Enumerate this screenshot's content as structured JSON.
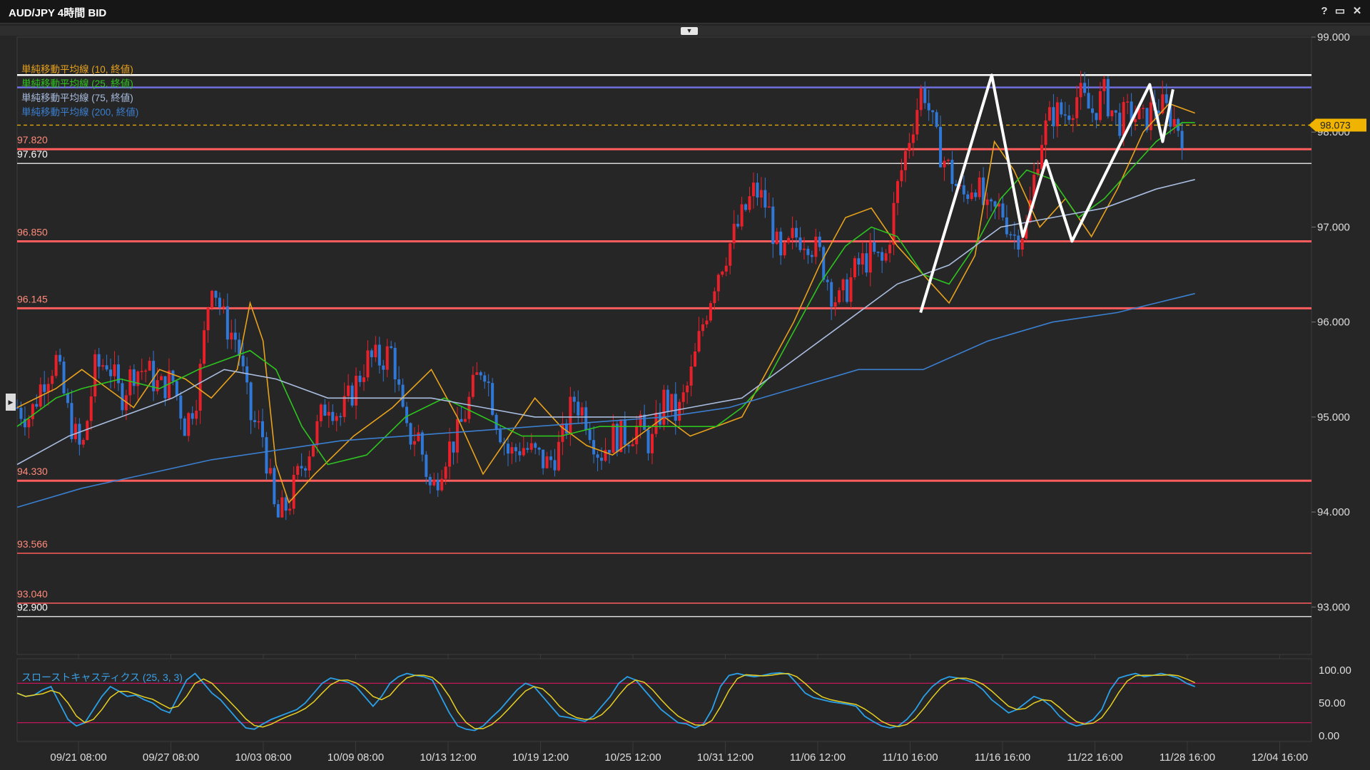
{
  "window": {
    "title": "AUD/JPY 4時間 BID",
    "help_label": "?",
    "maximize_label": "▭",
    "close_label": "✕"
  },
  "indicators": {
    "ma_legend": [
      {
        "label": "単純移動平均線 (10, 終値)",
        "color": "#e8a21c"
      },
      {
        "label": "単純移動平均線 (25, 終値)",
        "color": "#2ec41f"
      },
      {
        "label": "単純移動平均線 (75, 終値)",
        "color": "#a9bde0"
      },
      {
        "label": "単純移動平均線 (200, 終値)",
        "color": "#3a7fd0"
      }
    ],
    "oscillator_label": "スローストキャスティクス (25, 3, 3)"
  },
  "chart_data": {
    "type": "candlestick",
    "symbol": "AUD/JPY",
    "timeframe": "4時間",
    "price_axis": {
      "min": 92.5,
      "max": 99.0,
      "ticks": [
        "99.000",
        "98.000",
        "97.000",
        "96.000",
        "95.000",
        "94.000",
        "93.000"
      ]
    },
    "current_price": "98.073",
    "x_tick_labels": [
      "09/21 08:00",
      "09/27 08:00",
      "10/03 08:00",
      "10/09 08:00",
      "10/13 12:00",
      "10/19 12:00",
      "10/25 12:00",
      "10/31 12:00",
      "11/06 12:00",
      "11/10 16:00",
      "11/16 16:00",
      "11/22 16:00",
      "11/28 16:00",
      "12/04 16:00"
    ],
    "horizontal_levels": [
      {
        "price": 98.6,
        "label": "",
        "color": "#ffffff"
      },
      {
        "price": 98.47,
        "label": "",
        "color": "#6f6fe0"
      },
      {
        "price": 97.82,
        "label": "97.820",
        "color": "#ff5d5d"
      },
      {
        "price": 97.67,
        "label": "97.670",
        "color": "#d8d8d8"
      },
      {
        "price": 96.85,
        "label": "96.850",
        "color": "#ff5d5d"
      },
      {
        "price": 96.145,
        "label": "96.145",
        "color": "#ff5d5d"
      },
      {
        "price": 94.33,
        "label": "94.330",
        "color": "#ff5d5d"
      },
      {
        "price": 93.566,
        "label": "93.566",
        "color": "#ff5d5d"
      },
      {
        "price": 93.04,
        "label": "93.040",
        "color": "#ff5d5d"
      },
      {
        "price": 92.9,
        "label": "92.900",
        "color": "#d8d8d8"
      }
    ],
    "ma_paths": {
      "ma10": [
        [
          0,
          95.1
        ],
        [
          0.03,
          95.3
        ],
        [
          0.05,
          95.5
        ],
        [
          0.07,
          95.3
        ],
        [
          0.09,
          95.1
        ],
        [
          0.11,
          95.5
        ],
        [
          0.13,
          95.4
        ],
        [
          0.15,
          95.2
        ],
        [
          0.17,
          95.5
        ],
        [
          0.18,
          96.2
        ],
        [
          0.19,
          95.8
        ],
        [
          0.2,
          94.5
        ],
        [
          0.21,
          94.1
        ],
        [
          0.23,
          94.4
        ],
        [
          0.26,
          94.8
        ],
        [
          0.29,
          95.1
        ],
        [
          0.32,
          95.5
        ],
        [
          0.34,
          95.0
        ],
        [
          0.36,
          94.4
        ],
        [
          0.38,
          94.8
        ],
        [
          0.4,
          95.2
        ],
        [
          0.42,
          94.9
        ],
        [
          0.44,
          94.7
        ],
        [
          0.46,
          94.6
        ],
        [
          0.48,
          94.8
        ],
        [
          0.5,
          95.0
        ],
        [
          0.52,
          94.8
        ],
        [
          0.54,
          94.9
        ],
        [
          0.56,
          95.0
        ],
        [
          0.58,
          95.5
        ],
        [
          0.6,
          96.0
        ],
        [
          0.62,
          96.6
        ],
        [
          0.64,
          97.1
        ],
        [
          0.66,
          97.2
        ],
        [
          0.68,
          96.8
        ],
        [
          0.7,
          96.5
        ],
        [
          0.72,
          96.2
        ],
        [
          0.74,
          96.7
        ],
        [
          0.755,
          97.9
        ],
        [
          0.77,
          97.6
        ],
        [
          0.79,
          97.0
        ],
        [
          0.81,
          97.3
        ],
        [
          0.83,
          96.9
        ],
        [
          0.85,
          97.4
        ],
        [
          0.87,
          98.0
        ],
        [
          0.89,
          98.3
        ],
        [
          0.91,
          98.2
        ]
      ],
      "ma25": [
        [
          0,
          94.9
        ],
        [
          0.03,
          95.2
        ],
        [
          0.05,
          95.3
        ],
        [
          0.08,
          95.4
        ],
        [
          0.11,
          95.3
        ],
        [
          0.14,
          95.5
        ],
        [
          0.16,
          95.6
        ],
        [
          0.18,
          95.7
        ],
        [
          0.2,
          95.5
        ],
        [
          0.22,
          94.9
        ],
        [
          0.24,
          94.5
        ],
        [
          0.27,
          94.6
        ],
        [
          0.3,
          95.0
        ],
        [
          0.33,
          95.2
        ],
        [
          0.36,
          95.0
        ],
        [
          0.39,
          94.8
        ],
        [
          0.42,
          94.8
        ],
        [
          0.45,
          94.9
        ],
        [
          0.48,
          94.9
        ],
        [
          0.51,
          94.9
        ],
        [
          0.54,
          94.9
        ],
        [
          0.56,
          95.1
        ],
        [
          0.58,
          95.4
        ],
        [
          0.6,
          95.9
        ],
        [
          0.62,
          96.4
        ],
        [
          0.64,
          96.8
        ],
        [
          0.66,
          97.0
        ],
        [
          0.68,
          96.9
        ],
        [
          0.7,
          96.5
        ],
        [
          0.72,
          96.4
        ],
        [
          0.74,
          96.8
        ],
        [
          0.76,
          97.3
        ],
        [
          0.78,
          97.6
        ],
        [
          0.8,
          97.5
        ],
        [
          0.82,
          97.1
        ],
        [
          0.84,
          97.3
        ],
        [
          0.86,
          97.6
        ],
        [
          0.88,
          97.9
        ],
        [
          0.9,
          98.1
        ],
        [
          0.91,
          98.1
        ]
      ],
      "ma75": [
        [
          0,
          94.5
        ],
        [
          0.04,
          94.8
        ],
        [
          0.08,
          95.0
        ],
        [
          0.12,
          95.2
        ],
        [
          0.16,
          95.5
        ],
        [
          0.2,
          95.4
        ],
        [
          0.24,
          95.2
        ],
        [
          0.28,
          95.2
        ],
        [
          0.32,
          95.2
        ],
        [
          0.36,
          95.1
        ],
        [
          0.4,
          95.0
        ],
        [
          0.44,
          95.0
        ],
        [
          0.48,
          95.0
        ],
        [
          0.52,
          95.1
        ],
        [
          0.56,
          95.2
        ],
        [
          0.6,
          95.6
        ],
        [
          0.64,
          96.0
        ],
        [
          0.68,
          96.4
        ],
        [
          0.72,
          96.6
        ],
        [
          0.76,
          97.0
        ],
        [
          0.8,
          97.1
        ],
        [
          0.84,
          97.2
        ],
        [
          0.88,
          97.4
        ],
        [
          0.91,
          97.5
        ]
      ],
      "ma200": [
        [
          0,
          94.05
        ],
        [
          0.05,
          94.25
        ],
        [
          0.1,
          94.4
        ],
        [
          0.15,
          94.55
        ],
        [
          0.2,
          94.65
        ],
        [
          0.25,
          94.75
        ],
        [
          0.3,
          94.8
        ],
        [
          0.35,
          94.85
        ],
        [
          0.4,
          94.9
        ],
        [
          0.45,
          94.95
        ],
        [
          0.5,
          95.0
        ],
        [
          0.55,
          95.1
        ],
        [
          0.6,
          95.3
        ],
        [
          0.65,
          95.5
        ],
        [
          0.7,
          95.5
        ],
        [
          0.75,
          95.8
        ],
        [
          0.8,
          96.0
        ],
        [
          0.85,
          96.1
        ],
        [
          0.88,
          96.2
        ],
        [
          0.91,
          96.3
        ]
      ]
    },
    "price_path": [
      [
        0,
        95.1
      ],
      [
        0.01,
        95.0
      ],
      [
        0.02,
        95.4
      ],
      [
        0.03,
        95.6
      ],
      [
        0.04,
        95.0
      ],
      [
        0.05,
        94.6
      ],
      [
        0.06,
        95.5
      ],
      [
        0.07,
        95.6
      ],
      [
        0.08,
        95.2
      ],
      [
        0.09,
        95.5
      ],
      [
        0.1,
        95.5
      ],
      [
        0.11,
        95.3
      ],
      [
        0.12,
        95.4
      ],
      [
        0.13,
        94.9
      ],
      [
        0.14,
        95.3
      ],
      [
        0.15,
        96.5
      ],
      [
        0.16,
        96.0
      ],
      [
        0.17,
        95.8
      ],
      [
        0.18,
        95.0
      ],
      [
        0.19,
        94.8
      ],
      [
        0.2,
        93.9
      ],
      [
        0.21,
        94.1
      ],
      [
        0.22,
        94.5
      ],
      [
        0.23,
        94.8
      ],
      [
        0.24,
        95.2
      ],
      [
        0.25,
        95.0
      ],
      [
        0.26,
        95.3
      ],
      [
        0.27,
        95.6
      ],
      [
        0.28,
        95.6
      ],
      [
        0.29,
        95.7
      ],
      [
        0.3,
        94.8
      ],
      [
        0.31,
        94.8
      ],
      [
        0.32,
        94.2
      ],
      [
        0.33,
        94.6
      ],
      [
        0.34,
        94.8
      ],
      [
        0.35,
        95.2
      ],
      [
        0.36,
        95.6
      ],
      [
        0.37,
        95.0
      ],
      [
        0.38,
        94.6
      ],
      [
        0.39,
        94.7
      ],
      [
        0.4,
        94.6
      ],
      [
        0.41,
        94.5
      ],
      [
        0.42,
        94.7
      ],
      [
        0.43,
        95.2
      ],
      [
        0.44,
        95.0
      ],
      [
        0.45,
        94.6
      ],
      [
        0.46,
        94.8
      ],
      [
        0.47,
        94.8
      ],
      [
        0.48,
        94.9
      ],
      [
        0.49,
        94.7
      ],
      [
        0.5,
        95.2
      ],
      [
        0.51,
        95.0
      ],
      [
        0.52,
        95.4
      ],
      [
        0.53,
        96.0
      ],
      [
        0.54,
        96.5
      ],
      [
        0.55,
        96.8
      ],
      [
        0.56,
        97.1
      ],
      [
        0.57,
        97.4
      ],
      [
        0.58,
        97.2
      ],
      [
        0.59,
        96.6
      ],
      [
        0.6,
        96.9
      ],
      [
        0.61,
        96.9
      ],
      [
        0.62,
        96.7
      ],
      [
        0.63,
        96.3
      ],
      [
        0.635,
        96.2
      ],
      [
        0.65,
        96.6
      ],
      [
        0.66,
        96.7
      ],
      [
        0.67,
        96.6
      ],
      [
        0.68,
        97.4
      ],
      [
        0.69,
        98.0
      ],
      [
        0.7,
        98.5
      ],
      [
        0.71,
        97.9
      ],
      [
        0.72,
        97.6
      ],
      [
        0.73,
        97.3
      ],
      [
        0.74,
        97.5
      ],
      [
        0.75,
        97.1
      ],
      [
        0.76,
        97.2
      ],
      [
        0.77,
        96.9
      ],
      [
        0.78,
        97.0
      ],
      [
        0.79,
        97.9
      ],
      [
        0.8,
        98.2
      ],
      [
        0.81,
        98.2
      ],
      [
        0.82,
        98.4
      ],
      [
        0.83,
        98.2
      ],
      [
        0.84,
        98.4
      ],
      [
        0.85,
        98.1
      ],
      [
        0.86,
        98.2
      ],
      [
        0.87,
        98.1
      ],
      [
        0.88,
        98.3
      ],
      [
        0.89,
        98.2
      ],
      [
        0.9,
        98.0
      ]
    ],
    "annotation_zigzag": [
      [
        0.698,
        96.1
      ],
      [
        0.753,
        98.6
      ],
      [
        0.777,
        96.9
      ],
      [
        0.795,
        97.7
      ],
      [
        0.815,
        96.85
      ],
      [
        0.875,
        98.5
      ],
      [
        0.885,
        97.9
      ],
      [
        0.893,
        98.45
      ]
    ],
    "oscillator": {
      "name": "スローストキャスティクス (25, 3, 3)",
      "axis_ticks": [
        "100.00",
        "50.00",
        "0.00"
      ],
      "levels": [
        80,
        20
      ],
      "k_values": [
        65,
        60,
        62,
        70,
        75,
        50,
        25,
        15,
        20,
        40,
        60,
        75,
        68,
        60,
        62,
        55,
        50,
        40,
        35,
        60,
        85,
        95,
        80,
        65,
        55,
        40,
        25,
        12,
        10,
        18,
        25,
        30,
        35,
        40,
        50,
        65,
        80,
        88,
        85,
        82,
        75,
        60,
        45,
        60,
        80,
        90,
        95,
        92,
        90,
        85,
        60,
        35,
        15,
        10,
        8,
        15,
        28,
        40,
        55,
        70,
        80,
        75,
        60,
        45,
        30,
        28,
        25,
        22,
        30,
        45,
        60,
        80,
        90,
        85,
        70,
        55,
        40,
        30,
        20,
        18,
        12,
        18,
        40,
        75,
        92,
        95,
        92,
        90,
        92,
        95,
        96,
        94,
        80,
        65,
        58,
        55,
        52,
        50,
        48,
        45,
        30,
        22,
        15,
        12,
        15,
        25,
        40,
        60,
        75,
        85,
        90,
        88,
        85,
        80,
        70,
        55,
        45,
        35,
        40,
        50,
        60,
        55,
        45,
        30,
        20,
        15,
        18,
        25,
        40,
        70,
        88,
        92,
        95,
        90,
        92,
        95,
        92,
        88,
        80,
        75
      ]
    }
  }
}
